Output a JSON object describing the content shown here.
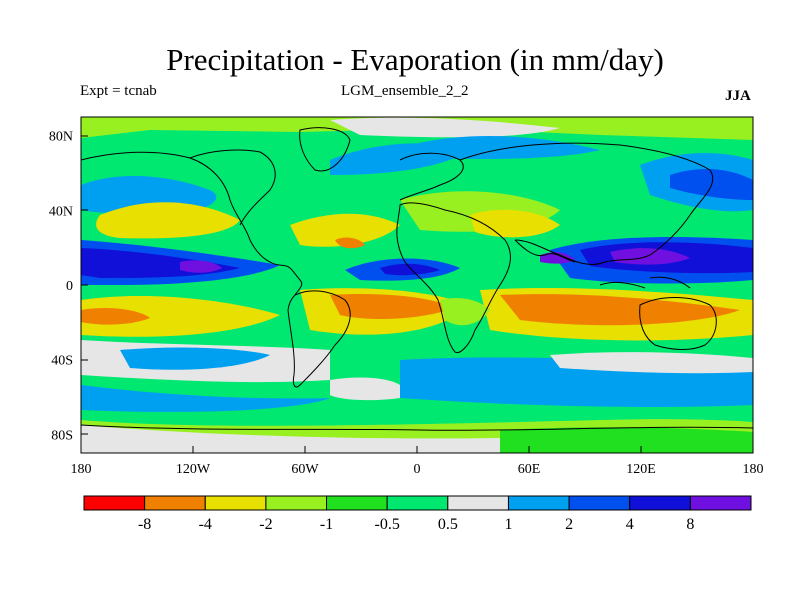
{
  "title": "Precipitation - Evaporation (in mm/day)",
  "left_label": "Expt = tcnab",
  "center_label": "LGM_ensemble_2_2",
  "right_label": "JJA",
  "map": {
    "projection": "cylindrical-equidistant",
    "lon_ticks": [
      "180",
      "120W",
      "60W",
      "0",
      "60E",
      "120E",
      "180"
    ],
    "lat_ticks": [
      "80N",
      "40N",
      "0",
      "40S",
      "80S"
    ]
  },
  "colorbar": {
    "colors": [
      "#ff0000",
      "#f08000",
      "#e8e000",
      "#98f020",
      "#20e020",
      "#00e870",
      "#e6e6e6",
      "#00a0f0",
      "#0050f0",
      "#1010d8",
      "#7010e0"
    ],
    "labels": [
      "-8",
      "-4",
      "-2",
      "-1",
      "-0.5",
      "0.5",
      "1",
      "2",
      "4",
      "8"
    ]
  }
}
